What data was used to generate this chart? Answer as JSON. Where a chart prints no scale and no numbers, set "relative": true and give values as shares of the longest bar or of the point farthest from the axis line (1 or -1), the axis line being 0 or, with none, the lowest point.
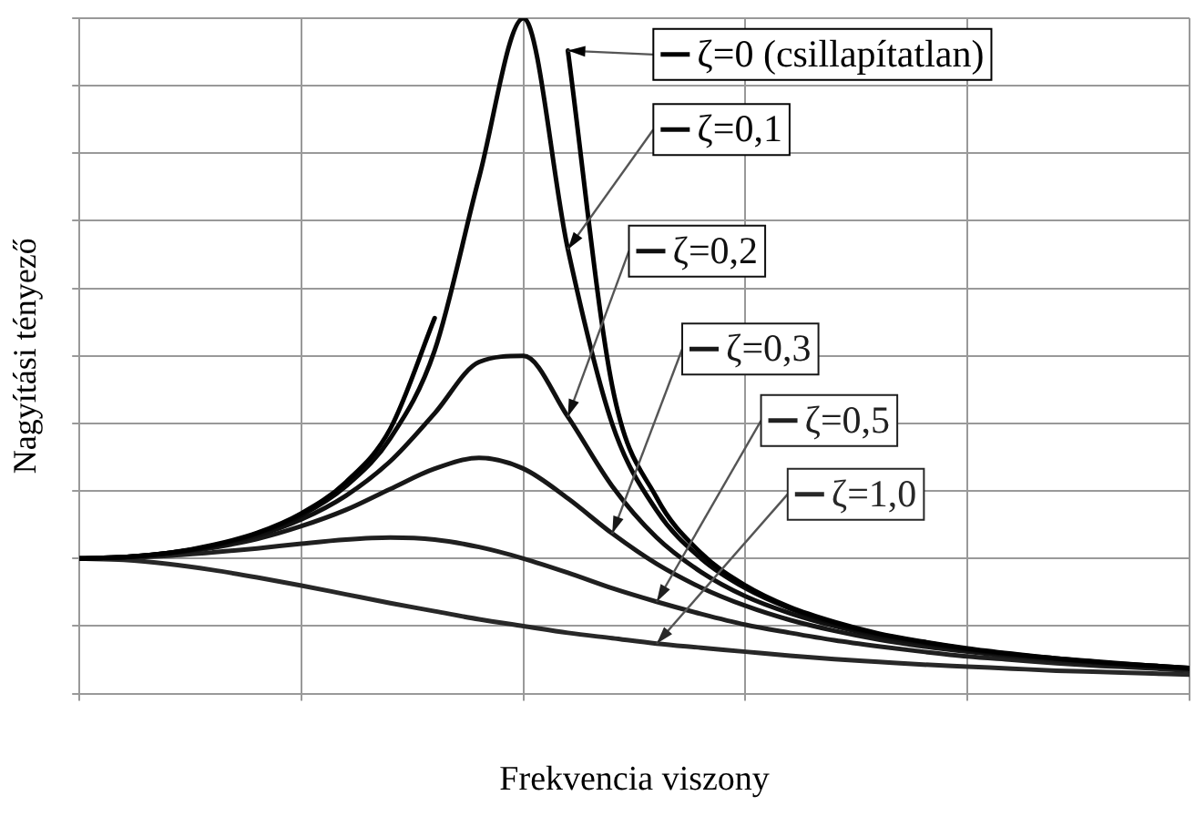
{
  "chart_data": {
    "type": "line",
    "relative": true,
    "xlabel": "Frekvencia viszony",
    "ylabel": "Nagyítási tényező",
    "grid": true,
    "legend": "top right",
    "marker": "none",
    "line_style": "solid",
    "categories": [
      null,
      null,
      null,
      null,
      null,
      null,
      null,
      null,
      null,
      null,
      null,
      null,
      null,
      null,
      null,
      null,
      null,
      null,
      null,
      null,
      null,
      null,
      null,
      null,
      null,
      null
    ],
    "series": [
      {
        "name": "ζ=0 (csillapítatlan)",
        "color": "#000000",
        "values": [
          0.2,
          0.202,
          0.208,
          0.22,
          0.238,
          0.267,
          0.313,
          0.392,
          0.556,
          null,
          null,
          0.952,
          0.455,
          0.29,
          0.208,
          0.16,
          0.128,
          0.106,
          0.089,
          0.077,
          0.067,
          0.059,
          0.052,
          0.047,
          0.042,
          0.038
        ]
      },
      {
        "name": "ζ=0,1",
        "color": "#080808",
        "values": [
          0.2,
          0.202,
          0.208,
          0.219,
          0.237,
          0.264,
          0.307,
          0.378,
          0.508,
          0.764,
          1,
          0.658,
          0.399,
          0.271,
          0.2,
          0.156,
          0.126,
          0.104,
          0.088,
          0.076,
          0.066,
          0.058,
          0.052,
          0.046,
          0.042,
          0.038
        ]
      },
      {
        "name": "ζ=0,2",
        "color": "#101010",
        "values": [
          0.2,
          0.202,
          0.208,
          0.218,
          0.234,
          0.258,
          0.293,
          0.344,
          0.415,
          0.491,
          0.5,
          0.41,
          0.307,
          0.231,
          0.18,
          0.144,
          0.119,
          0.1,
          0.085,
          0.074,
          0.064,
          0.057,
          0.051,
          0.046,
          0.041,
          0.037
        ]
      },
      {
        "name": "ζ=0,3",
        "color": "#181818",
        "values": [
          0.2,
          0.202,
          0.207,
          0.216,
          0.229,
          0.248,
          0.272,
          0.303,
          0.333,
          0.349,
          0.333,
          0.289,
          0.237,
          0.192,
          0.157,
          0.13,
          0.109,
          0.093,
          0.08,
          0.07,
          0.062,
          0.055,
          0.049,
          0.044,
          0.04,
          0.037
        ]
      },
      {
        "name": "ζ=0,5",
        "color": "#202020",
        "values": [
          0.2,
          0.201,
          0.204,
          0.209,
          0.215,
          0.222,
          0.228,
          0.231,
          0.228,
          0.217,
          0.2,
          0.179,
          0.156,
          0.136,
          0.118,
          0.102,
          0.09,
          0.079,
          0.07,
          0.062,
          0.055,
          0.05,
          0.045,
          0.041,
          0.038,
          0.034
        ]
      },
      {
        "name": "ζ=1,0",
        "color": "#282828",
        "values": [
          0.2,
          0.198,
          0.192,
          0.183,
          0.172,
          0.16,
          0.147,
          0.134,
          0.122,
          0.11,
          0.1,
          0.09,
          0.082,
          0.074,
          0.068,
          0.062,
          0.056,
          0.051,
          0.047,
          0.043,
          0.04,
          0.037,
          0.034,
          0.032,
          0.03,
          0.028
        ]
      }
    ]
  }
}
